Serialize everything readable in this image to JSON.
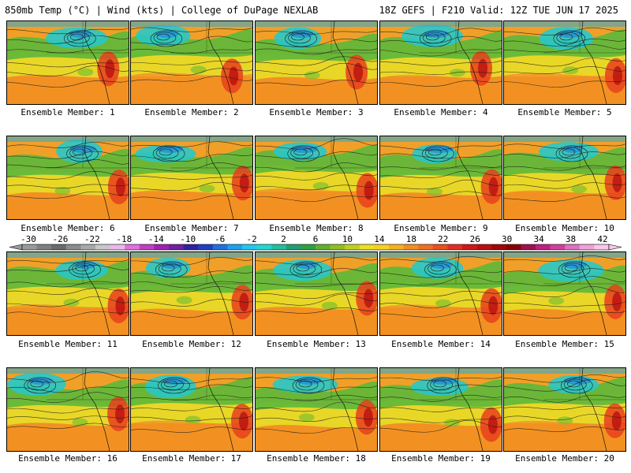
{
  "header": {
    "left_text": "850mb Temp (°C) | Wind (kts) | College of DuPage NEXLAB",
    "right_text": "18Z GEFS | F210 Valid: 12Z TUE JUN 17 2025"
  },
  "panel_label_prefix": "Ensemble Member: ",
  "members": [
    {
      "label": "Ensemble Member: 1"
    },
    {
      "label": "Ensemble Member: 2"
    },
    {
      "label": "Ensemble Member: 3"
    },
    {
      "label": "Ensemble Member: 4"
    },
    {
      "label": "Ensemble Member: 5"
    },
    {
      "label": "Ensemble Member: 6"
    },
    {
      "label": "Ensemble Member: 7"
    },
    {
      "label": "Ensemble Member: 8"
    },
    {
      "label": "Ensemble Member: 9"
    },
    {
      "label": "Ensemble Member: 10"
    },
    {
      "label": "Ensemble Member: 11"
    },
    {
      "label": "Ensemble Member: 12"
    },
    {
      "label": "Ensemble Member: 13"
    },
    {
      "label": "Ensemble Member: 14"
    },
    {
      "label": "Ensemble Member: 15"
    },
    {
      "label": "Ensemble Member: 16"
    },
    {
      "label": "Ensemble Member: 17"
    },
    {
      "label": "Ensemble Member: 18"
    },
    {
      "label": "Ensemble Member: 19"
    },
    {
      "label": "Ensemble Member: 20"
    }
  ],
  "colorbar": {
    "labels": [
      "-30",
      "-26",
      "-22",
      "-18",
      "-14",
      "-10",
      "-6",
      "-2",
      "2",
      "6",
      "10",
      "14",
      "18",
      "22",
      "26",
      "30",
      "34",
      "38",
      "42"
    ],
    "colors": [
      "#9a9a9a",
      "#7f7f7f",
      "#6a6a6a",
      "#8c8c8c",
      "#a9a9a9",
      "#c8c8c8",
      "#e9b9e9",
      "#e070e0",
      "#c040c0",
      "#a020b0",
      "#7020a0",
      "#3020a0",
      "#2040c0",
      "#2070e0",
      "#20a0f0",
      "#20c8f0",
      "#20d8d0",
      "#20c0a0",
      "#20a070",
      "#30a040",
      "#60b030",
      "#90c020",
      "#c0d020",
      "#e8e020",
      "#f8d020",
      "#f8b020",
      "#f09020",
      "#f07020",
      "#e85020",
      "#e03020",
      "#d01818",
      "#b81010",
      "#a00808",
      "#880000",
      "#a01050",
      "#c02080",
      "#d040a0",
      "#e070c0",
      "#f0a0d8",
      "#f8c8e8"
    ]
  }
}
